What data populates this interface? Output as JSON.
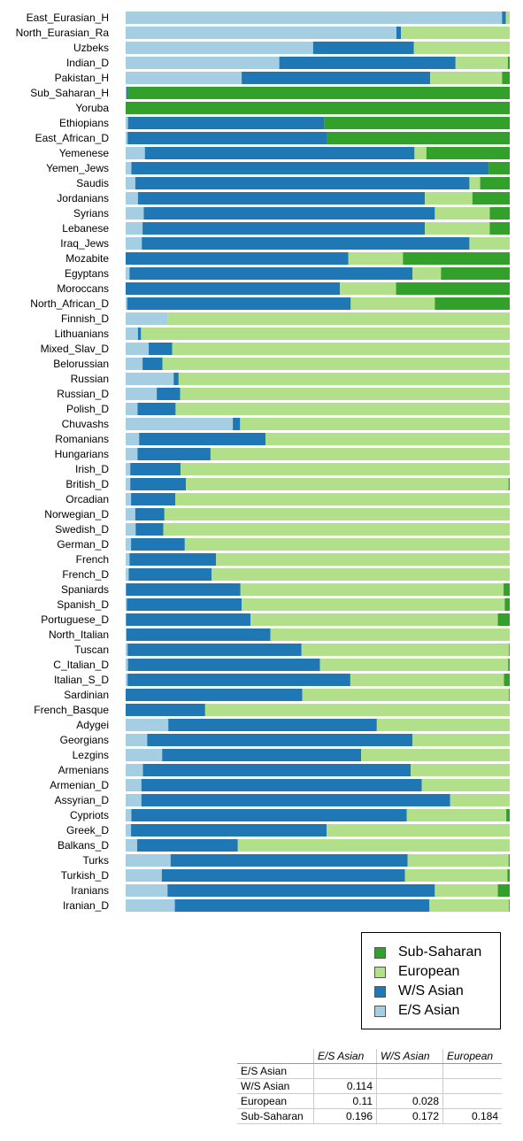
{
  "chart_data": {
    "type": "bar",
    "orientation": "horizontal",
    "stacked": "percent",
    "categories": [
      "East_Eurasian_H",
      "North_Eurasian_Ra",
      "Uzbeks",
      "Indian_D",
      "Pakistan_H",
      "Sub_Saharan_H",
      "Yoruba",
      "Ethiopians",
      "East_African_D",
      "Yemenese",
      "Yemen_Jews",
      "Saudis",
      "Jordanians",
      "Syrians",
      "Lebanese",
      "Iraq_Jews",
      "Mozabite",
      "Egyptans",
      "Moroccans",
      "North_African_D",
      "Finnish_D",
      "Lithuanians",
      "Mixed_Slav_D",
      "Belorussian",
      "Russian",
      "Russian_D",
      "Polish_D",
      "Chuvashs",
      "Romanians",
      "Hungarians",
      "Irish_D",
      "British_D",
      "Orcadian",
      "Norwegian_D",
      "Swedish_D",
      "German_D",
      "French",
      "French_D",
      "Spaniards",
      "Spanish_D",
      "Portuguese_D",
      "North_Italian",
      "Tuscan",
      "C_Italian_D",
      "Italian_S_D",
      "Sardinian",
      "French_Basque",
      "Adygei",
      "Georgians",
      "Lezgins",
      "Armenians",
      "Armenian_D",
      "Assyrian_D",
      "Cypriots",
      "Greek_D",
      "Balkans_D",
      "Turks",
      "Turkish_D",
      "Iranians",
      "Iranian_D"
    ],
    "series": [
      {
        "name": "E/S Asian",
        "color": "#a6cee3",
        "values": [
          98.0,
          70.5,
          48.8,
          40.0,
          30.2,
          0.2,
          0.0,
          0.6,
          0.5,
          5.0,
          1.5,
          2.5,
          3.2,
          4.7,
          4.4,
          4.2,
          0.0,
          1.0,
          0.0,
          0.4,
          11.0,
          3.2,
          6.0,
          4.4,
          12.5,
          8.1,
          3.1,
          27.9,
          3.5,
          3.1,
          1.2,
          1.2,
          1.4,
          2.5,
          2.6,
          1.4,
          1.0,
          0.8,
          0.1,
          0.3,
          0.1,
          0.2,
          0.5,
          0.6,
          0.5,
          0.0,
          0.0,
          11.1,
          5.6,
          9.5,
          4.5,
          4.1,
          4.1,
          1.5,
          1.4,
          3.0,
          11.7,
          9.4,
          10.9,
          12.8
        ]
      },
      {
        "name": "W/S Asian",
        "color": "#1f78b4",
        "values": [
          1.0,
          1.2,
          26.2,
          45.9,
          49.1,
          0.4,
          0.0,
          51.1,
          51.8,
          70.2,
          93.0,
          87.0,
          74.7,
          75.8,
          73.5,
          85.3,
          58.0,
          73.7,
          55.8,
          58.2,
          0.0,
          0.8,
          6.1,
          5.2,
          1.3,
          6.1,
          9.9,
          1.9,
          32.9,
          19.0,
          13.1,
          14.5,
          11.5,
          7.6,
          7.2,
          14.0,
          22.5,
          21.6,
          29.8,
          29.9,
          32.4,
          37.5,
          45.3,
          50.0,
          58.0,
          46.0,
          20.7,
          54.3,
          69.1,
          51.8,
          69.7,
          73.0,
          80.4,
          71.7,
          50.9,
          26.2,
          61.7,
          63.3,
          69.6,
          66.3
        ]
      },
      {
        "name": "European",
        "color": "#b2df8a",
        "values": [
          1.0,
          28.3,
          25.0,
          13.6,
          18.7,
          0.0,
          0.0,
          0.0,
          0.0,
          3.1,
          0.0,
          2.8,
          12.4,
          14.3,
          16.9,
          10.5,
          14.2,
          7.4,
          14.6,
          21.9,
          89.0,
          96.0,
          87.9,
          90.4,
          86.2,
          85.8,
          87.0,
          70.2,
          63.6,
          77.9,
          85.7,
          84.0,
          87.1,
          89.9,
          90.2,
          84.6,
          76.5,
          77.6,
          68.5,
          68.5,
          64.4,
          62.3,
          54.0,
          49.0,
          40.0,
          53.8,
          79.3,
          34.6,
          25.3,
          38.7,
          25.8,
          22.9,
          15.5,
          25.9,
          47.7,
          70.8,
          26.3,
          26.7,
          16.4,
          20.7
        ]
      },
      {
        "name": "Sub-Saharan",
        "color": "#33a02c",
        "values": [
          0.0,
          0.0,
          0.0,
          0.5,
          2.0,
          99.4,
          100.0,
          48.3,
          47.7,
          21.7,
          5.5,
          7.7,
          9.7,
          5.2,
          5.2,
          0.0,
          27.8,
          17.9,
          29.6,
          19.5,
          0.0,
          0.0,
          0.0,
          0.0,
          0.0,
          0.0,
          0.0,
          0.0,
          0.0,
          0.0,
          0.0,
          0.3,
          0.0,
          0.0,
          0.0,
          0.0,
          0.0,
          0.0,
          1.6,
          1.3,
          3.1,
          0.0,
          0.2,
          0.4,
          1.5,
          0.2,
          0.0,
          0.0,
          0.0,
          0.0,
          0.0,
          0.0,
          0.0,
          0.9,
          0.0,
          0.0,
          0.3,
          0.6,
          3.1,
          0.2
        ]
      }
    ],
    "xlim": [
      0,
      100
    ],
    "grid": false,
    "legend_placement": "bottom-right",
    "correlation_table": {
      "columns": [
        "E/S Asian",
        "W/S Asian",
        "European"
      ],
      "rows": [
        {
          "label": "E/S Asian",
          "values": [
            "",
            "",
            ""
          ]
        },
        {
          "label": "W/S Asian",
          "values": [
            "0.114",
            "",
            ""
          ]
        },
        {
          "label": "European",
          "values": [
            "0.11",
            "0.028",
            ""
          ]
        },
        {
          "label": "Sub-Saharan",
          "values": [
            "0.196",
            "0.172",
            "0.184"
          ]
        }
      ]
    }
  },
  "legend": {
    "items": [
      {
        "label": "Sub-Saharan",
        "color": "#33a02c"
      },
      {
        "label": "European",
        "color": "#b2df8a"
      },
      {
        "label": "W/S Asian",
        "color": "#1f78b4"
      },
      {
        "label": "E/S Asian",
        "color": "#a6cee3"
      }
    ]
  }
}
